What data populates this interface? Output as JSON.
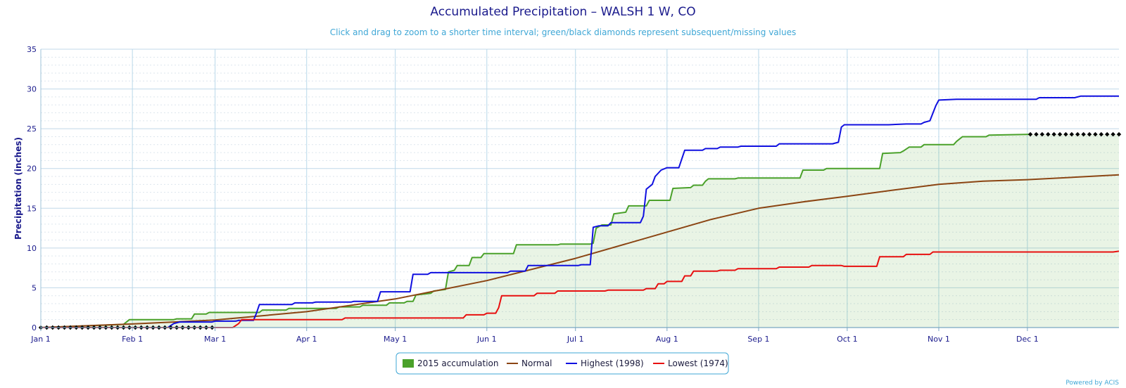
{
  "chart_data": {
    "type": "line",
    "title": "Accumulated Precipitation – WALSH 1 W, CO",
    "subtitle": "Click and drag to zoom to a shorter time interval; green/black diamonds represent subsequent/missing values",
    "ylabel": "Precipitation (inches)",
    "xlabel": "",
    "ylim": [
      0,
      35
    ],
    "yticks": [
      0,
      5,
      10,
      15,
      20,
      25,
      30,
      35
    ],
    "xlim": [
      0,
      365
    ],
    "xticks": [
      {
        "day": 0,
        "label": "Jan 1"
      },
      {
        "day": 31,
        "label": "Feb 1"
      },
      {
        "day": 59,
        "label": "Mar 1"
      },
      {
        "day": 90,
        "label": "Apr 1"
      },
      {
        "day": 120,
        "label": "May 1"
      },
      {
        "day": 151,
        "label": "Jun 1"
      },
      {
        "day": 181,
        "label": "Jul 1"
      },
      {
        "day": 212,
        "label": "Aug 1"
      },
      {
        "day": 243,
        "label": "Sep 1"
      },
      {
        "day": 273,
        "label": "Oct 1"
      },
      {
        "day": 304,
        "label": "Nov 1"
      },
      {
        "day": 334,
        "label": "Dec 1"
      }
    ],
    "grid": true,
    "legend_position": "bottom-center",
    "series": [
      {
        "name": "2015 accumulation",
        "color": "#4aa12a",
        "fill": "area",
        "points": [
          [
            0,
            0
          ],
          [
            28,
            0.4
          ],
          [
            30,
            1.0
          ],
          [
            45,
            1.0
          ],
          [
            46,
            1.1
          ],
          [
            51,
            1.1
          ],
          [
            52,
            1.7
          ],
          [
            56,
            1.7
          ],
          [
            57,
            1.9
          ],
          [
            74,
            1.9
          ],
          [
            75,
            2.2
          ],
          [
            83,
            2.2
          ],
          [
            84,
            2.4
          ],
          [
            100,
            2.4
          ],
          [
            101,
            2.6
          ],
          [
            108,
            2.6
          ],
          [
            109,
            2.8
          ],
          [
            117,
            2.8
          ],
          [
            118,
            3.1
          ],
          [
            123,
            3.1
          ],
          [
            124,
            3.3
          ],
          [
            126,
            3.3
          ],
          [
            127,
            4.1
          ],
          [
            132,
            4.3
          ],
          [
            133,
            4.6
          ],
          [
            137,
            4.8
          ],
          [
            138,
            7.0
          ],
          [
            140,
            7.2
          ],
          [
            141,
            7.8
          ],
          [
            145,
            7.8
          ],
          [
            146,
            8.8
          ],
          [
            149,
            8.8
          ],
          [
            150,
            9.3
          ],
          [
            160,
            9.3
          ],
          [
            161,
            10.4
          ],
          [
            175,
            10.4
          ],
          [
            176,
            10.5
          ],
          [
            186,
            10.5
          ],
          [
            187,
            10.6
          ],
          [
            188,
            12.5
          ],
          [
            190,
            12.9
          ],
          [
            193,
            12.9
          ],
          [
            194,
            14.3
          ],
          [
            198,
            14.5
          ],
          [
            199,
            15.3
          ],
          [
            205,
            15.3
          ],
          [
            206,
            16.0
          ],
          [
            213,
            16.0
          ],
          [
            214,
            17.5
          ],
          [
            220,
            17.6
          ],
          [
            221,
            17.9
          ],
          [
            224,
            17.9
          ],
          [
            225,
            18.4
          ],
          [
            226,
            18.7
          ],
          [
            235,
            18.7
          ],
          [
            236,
            18.8
          ],
          [
            257,
            18.8
          ],
          [
            258,
            19.8
          ],
          [
            265,
            19.8
          ],
          [
            266,
            20.0
          ],
          [
            284,
            20.0
          ],
          [
            285,
            21.9
          ],
          [
            291,
            22.0
          ],
          [
            292,
            22.2
          ],
          [
            294,
            22.7
          ],
          [
            298,
            22.7
          ],
          [
            299,
            23.0
          ],
          [
            309,
            23.0
          ],
          [
            310,
            23.4
          ],
          [
            312,
            24.0
          ],
          [
            320,
            24.0
          ],
          [
            321,
            24.2
          ],
          [
            335,
            24.3
          ]
        ]
      },
      {
        "name": "2015 missing values",
        "color": "#000000",
        "marker": "diamond",
        "points": [
          [
            0,
            0
          ],
          [
            2,
            0
          ],
          [
            4,
            0
          ],
          [
            6,
            0
          ],
          [
            8,
            0
          ],
          [
            10,
            0
          ],
          [
            12,
            0
          ],
          [
            14,
            0
          ],
          [
            16,
            0
          ],
          [
            18,
            0
          ],
          [
            20,
            0
          ],
          [
            22,
            0
          ],
          [
            24,
            0
          ],
          [
            26,
            0
          ],
          [
            28,
            0
          ],
          [
            30,
            0
          ],
          [
            32,
            0
          ],
          [
            34,
            0
          ],
          [
            36,
            0
          ],
          [
            38,
            0
          ],
          [
            40,
            0
          ],
          [
            42,
            0
          ],
          [
            44,
            0
          ],
          [
            46,
            0
          ],
          [
            48,
            0
          ],
          [
            50,
            0
          ],
          [
            52,
            0
          ],
          [
            54,
            0
          ],
          [
            56,
            0
          ],
          [
            58,
            0
          ],
          [
            335,
            24.3
          ],
          [
            337,
            24.3
          ],
          [
            339,
            24.3
          ],
          [
            341,
            24.3
          ],
          [
            343,
            24.3
          ],
          [
            345,
            24.3
          ],
          [
            347,
            24.3
          ],
          [
            349,
            24.3
          ],
          [
            351,
            24.3
          ],
          [
            353,
            24.3
          ],
          [
            355,
            24.3
          ],
          [
            357,
            24.3
          ],
          [
            359,
            24.3
          ],
          [
            361,
            24.3
          ],
          [
            363,
            24.3
          ],
          [
            365,
            24.3
          ]
        ]
      },
      {
        "name": "Normal",
        "color": "#8b4513",
        "points": [
          [
            0,
            0
          ],
          [
            31,
            0.45
          ],
          [
            59,
            0.95
          ],
          [
            90,
            2.0
          ],
          [
            120,
            3.6
          ],
          [
            151,
            5.9
          ],
          [
            181,
            8.7
          ],
          [
            212,
            12.0
          ],
          [
            227,
            13.6
          ],
          [
            243,
            15.0
          ],
          [
            258,
            15.8
          ],
          [
            273,
            16.5
          ],
          [
            289,
            17.3
          ],
          [
            304,
            18.0
          ],
          [
            319,
            18.4
          ],
          [
            334,
            18.6
          ],
          [
            365,
            19.2
          ]
        ]
      },
      {
        "name": "Highest (1998)",
        "color": "#1010e0",
        "points": [
          [
            0,
            0
          ],
          [
            43,
            0
          ],
          [
            45,
            0.5
          ],
          [
            47,
            0.7
          ],
          [
            58,
            0.7
          ],
          [
            59,
            0.8
          ],
          [
            66,
            0.8
          ],
          [
            67,
            0.9
          ],
          [
            72,
            0.9
          ],
          [
            73,
            1.8
          ],
          [
            74,
            2.9
          ],
          [
            85,
            2.9
          ],
          [
            86,
            3.1
          ],
          [
            92,
            3.1
          ],
          [
            93,
            3.2
          ],
          [
            105,
            3.2
          ],
          [
            106,
            3.3
          ],
          [
            114,
            3.3
          ],
          [
            115,
            4.5
          ],
          [
            125,
            4.5
          ],
          [
            126,
            6.7
          ],
          [
            131,
            6.7
          ],
          [
            132,
            6.9
          ],
          [
            158,
            6.9
          ],
          [
            159,
            7.1
          ],
          [
            164,
            7.1
          ],
          [
            165,
            7.8
          ],
          [
            182,
            7.8
          ],
          [
            183,
            7.9
          ],
          [
            186,
            7.9
          ],
          [
            187,
            12.6
          ],
          [
            189,
            12.8
          ],
          [
            192,
            12.8
          ],
          [
            193,
            13.2
          ],
          [
            203,
            13.2
          ],
          [
            204,
            14.0
          ],
          [
            205,
            17.4
          ],
          [
            207,
            18.0
          ],
          [
            208,
            19.0
          ],
          [
            210,
            19.8
          ],
          [
            212,
            20.1
          ],
          [
            216,
            20.1
          ],
          [
            218,
            22.3
          ],
          [
            224,
            22.3
          ],
          [
            225,
            22.5
          ],
          [
            229,
            22.5
          ],
          [
            230,
            22.7
          ],
          [
            236,
            22.7
          ],
          [
            237,
            22.8
          ],
          [
            249,
            22.8
          ],
          [
            250,
            23.1
          ],
          [
            268,
            23.1
          ],
          [
            270,
            23.3
          ],
          [
            271,
            25.2
          ],
          [
            272,
            25.5
          ],
          [
            287,
            25.5
          ],
          [
            293,
            25.6
          ],
          [
            298,
            25.6
          ],
          [
            299,
            25.8
          ],
          [
            301,
            26.0
          ],
          [
            303,
            27.9
          ],
          [
            304,
            28.6
          ],
          [
            310,
            28.7
          ],
          [
            337,
            28.7
          ],
          [
            338,
            28.9
          ],
          [
            350,
            28.9
          ],
          [
            352,
            29.1
          ],
          [
            365,
            29.1
          ]
        ]
      },
      {
        "name": "Lowest (1974)",
        "color": "#e81010",
        "points": [
          [
            0,
            0
          ],
          [
            65,
            0
          ],
          [
            67,
            0.5
          ],
          [
            68,
            1.0
          ],
          [
            102,
            1.0
          ],
          [
            103,
            1.2
          ],
          [
            143,
            1.2
          ],
          [
            144,
            1.6
          ],
          [
            150,
            1.6
          ],
          [
            151,
            1.8
          ],
          [
            154,
            1.8
          ],
          [
            155,
            2.5
          ],
          [
            156,
            4.0
          ],
          [
            167,
            4.0
          ],
          [
            168,
            4.3
          ],
          [
            174,
            4.3
          ],
          [
            175,
            4.6
          ],
          [
            191,
            4.6
          ],
          [
            192,
            4.7
          ],
          [
            204,
            4.7
          ],
          [
            205,
            4.9
          ],
          [
            208,
            4.9
          ],
          [
            209,
            5.5
          ],
          [
            211,
            5.5
          ],
          [
            212,
            5.8
          ],
          [
            217,
            5.8
          ],
          [
            218,
            6.5
          ],
          [
            220,
            6.5
          ],
          [
            221,
            7.1
          ],
          [
            229,
            7.1
          ],
          [
            230,
            7.2
          ],
          [
            235,
            7.2
          ],
          [
            236,
            7.4
          ],
          [
            249,
            7.4
          ],
          [
            250,
            7.6
          ],
          [
            260,
            7.6
          ],
          [
            261,
            7.8
          ],
          [
            271,
            7.8
          ],
          [
            272,
            7.7
          ],
          [
            283,
            7.7
          ],
          [
            284,
            8.9
          ],
          [
            292,
            8.9
          ],
          [
            293,
            9.2
          ],
          [
            301,
            9.2
          ],
          [
            302,
            9.5
          ],
          [
            363,
            9.5
          ],
          [
            365,
            9.6
          ]
        ]
      }
    ],
    "legend": [
      {
        "label": "2015 accumulation",
        "color": "#4aa12a",
        "symbol": "square"
      },
      {
        "label": "Normal",
        "color": "#8b4513",
        "symbol": "line"
      },
      {
        "label": "Highest (1998)",
        "color": "#1010e0",
        "symbol": "line"
      },
      {
        "label": "Lowest (1974)",
        "color": "#e81010",
        "symbol": "line"
      }
    ]
  },
  "credit": "Powered by ACIS"
}
